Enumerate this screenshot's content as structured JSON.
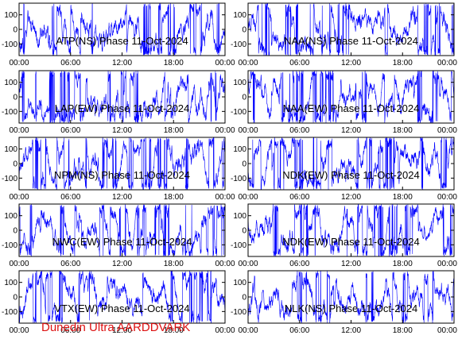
{
  "footer": {
    "text": "Dunedin Ultra AARDDVARK",
    "color": "#dd1111"
  },
  "colors": {
    "trace": "#0000ff",
    "frame": "#000000",
    "background": "#ffffff"
  },
  "chart_data": [
    {
      "type": "line",
      "title": "ATP(NS) Phase 11-Oct-2024",
      "series": [
        {
          "color": "#0000ff"
        }
      ],
      "xticks": [
        "00:00",
        "06:00",
        "12:00",
        "18:00",
        "00:00"
      ],
      "xlim": [
        "00:00",
        "24:00"
      ],
      "yticks": [
        100,
        0,
        -100
      ],
      "ylim": [
        -180,
        180
      ],
      "grid": false
    },
    {
      "type": "line",
      "title": "NAA(NS) Phase 11-Oct-2024",
      "series": [
        {
          "color": "#0000ff"
        }
      ],
      "xticks": [
        "00:00",
        "06:00",
        "12:00",
        "18:00",
        "00:00"
      ],
      "xlim": [
        "00:00",
        "24:00"
      ],
      "yticks": [
        100,
        0,
        -100
      ],
      "ylim": [
        -180,
        180
      ],
      "grid": false
    },
    {
      "type": "line",
      "title": "LAP(EW) Phase 11-Oct-2024",
      "series": [
        {
          "color": "#0000ff"
        }
      ],
      "xticks": [
        "00:00",
        "06:00",
        "12:00",
        "18:00",
        "00:00"
      ],
      "xlim": [
        "00:00",
        "24:00"
      ],
      "yticks": [
        100,
        0,
        -100
      ],
      "ylim": [
        -180,
        180
      ],
      "grid": false
    },
    {
      "type": "line",
      "title": "NAA(EW) Phase 11-Oct-2024",
      "series": [
        {
          "color": "#0000ff"
        }
      ],
      "xticks": [
        "00:00",
        "06:00",
        "12:00",
        "18:00",
        "00:00"
      ],
      "xlim": [
        "00:00",
        "24:00"
      ],
      "yticks": [
        100,
        0,
        -100
      ],
      "ylim": [
        -180,
        180
      ],
      "grid": false
    },
    {
      "type": "line",
      "title": "NPM(NS) Phase 11-Oct-2024",
      "series": [
        {
          "color": "#0000ff"
        }
      ],
      "xticks": [
        "00:00",
        "06:00",
        "12:00",
        "18:00",
        "00:00"
      ],
      "xlim": [
        "00:00",
        "24:00"
      ],
      "yticks": [
        100,
        0,
        -100
      ],
      "ylim": [
        -180,
        180
      ],
      "grid": false
    },
    {
      "type": "line",
      "title": "NDK(EW) Phase 11-Oct-2024",
      "series": [
        {
          "color": "#0000ff"
        }
      ],
      "xticks": [
        "00:00",
        "06:00",
        "12:00",
        "18:00",
        "00:00"
      ],
      "xlim": [
        "00:00",
        "24:00"
      ],
      "yticks": [
        100,
        0,
        -100
      ],
      "ylim": [
        -180,
        180
      ],
      "grid": false
    },
    {
      "type": "line",
      "title": "NWC(EW) Phase 11-Oct-2024",
      "series": [
        {
          "color": "#0000ff"
        }
      ],
      "xticks": [
        "00:00",
        "06:00",
        "12:00",
        "18:00",
        "00:00"
      ],
      "xlim": [
        "00:00",
        "24:00"
      ],
      "yticks": [
        100,
        0,
        -100
      ],
      "ylim": [
        -180,
        180
      ],
      "grid": false
    },
    {
      "type": "line",
      "title": "NDK(EW) Phase 11-Oct-2024",
      "series": [
        {
          "color": "#0000ff"
        }
      ],
      "xticks": [
        "00:00",
        "06:00",
        "12:00",
        "18:00",
        "00:00"
      ],
      "xlim": [
        "00:00",
        "24:00"
      ],
      "yticks": [
        100,
        0,
        -100
      ],
      "ylim": [
        -180,
        180
      ],
      "grid": false
    },
    {
      "type": "line",
      "title": "VTX(EW) Phase 11-Oct-2024",
      "series": [
        {
          "color": "#0000ff"
        }
      ],
      "xticks": [
        "00:00",
        "06:00",
        "12:00",
        "18:00",
        "00:00"
      ],
      "xlim": [
        "00:00",
        "24:00"
      ],
      "yticks": [
        100,
        0,
        -100
      ],
      "ylim": [
        -180,
        180
      ],
      "grid": false
    },
    {
      "type": "line",
      "title": "NLK(NS) Phase 11-Oct-2024",
      "series": [
        {
          "color": "#0000ff"
        }
      ],
      "xticks": [
        "00:00",
        "06:00",
        "12:00",
        "18:00",
        "00:00"
      ],
      "xlim": [
        "00:00",
        "24:00"
      ],
      "yticks": [
        100,
        0,
        -100
      ],
      "ylim": [
        -180,
        180
      ],
      "grid": false
    }
  ]
}
